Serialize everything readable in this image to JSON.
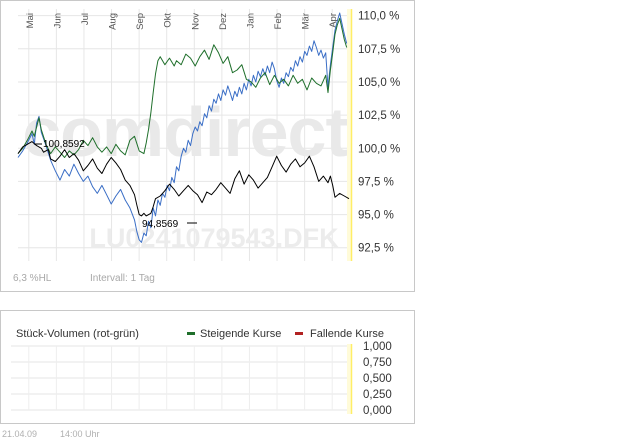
{
  "chart_data": {
    "type": "line",
    "months": [
      "Mai",
      "Jun",
      "Jul",
      "Aug",
      "Sep",
      "Okt",
      "Nov",
      "Dez",
      "Jan",
      "Feb",
      "Mär",
      "Apr"
    ],
    "y_ticks": [
      "110,0 %",
      "107,5 %",
      "105,0 %",
      "102,5 %",
      "100,0 %",
      "97,5 %",
      "95,0 %",
      "92,5 %"
    ],
    "ylim": [
      91.5,
      110.5
    ],
    "watermark": "comdirect",
    "security_id": "LU0241079543.DFK",
    "annotations": {
      "high": "100,8592",
      "low": "94,8569"
    },
    "series": [
      {
        "key": "fund",
        "color": "#000000",
        "points": [
          [
            0,
            99.6
          ],
          [
            2,
            100.1
          ],
          [
            4,
            100.3
          ],
          [
            6,
            100.5
          ],
          [
            8,
            100.2
          ],
          [
            10,
            100.0
          ],
          [
            11,
            99.7
          ],
          [
            13,
            99.9
          ],
          [
            14,
            99.2
          ],
          [
            16,
            99.0
          ],
          [
            18,
            99.4
          ],
          [
            20,
            99.9
          ],
          [
            22,
            99.3
          ],
          [
            24,
            99.6
          ],
          [
            26,
            99.1
          ],
          [
            28,
            98.3
          ],
          [
            30,
            98.7
          ],
          [
            32,
            99.2
          ],
          [
            34,
            98.5
          ],
          [
            36,
            98.1
          ],
          [
            38,
            98.8
          ],
          [
            40,
            99.3
          ],
          [
            42,
            98.9
          ],
          [
            44,
            98.4
          ],
          [
            46,
            97.6
          ],
          [
            48,
            97.2
          ],
          [
            50,
            96.5
          ],
          [
            51,
            95.7
          ],
          [
            52,
            95.0
          ],
          [
            53,
            94.9
          ],
          [
            54,
            95.1
          ],
          [
            55,
            94.9
          ],
          [
            57,
            95.1
          ],
          [
            58,
            95.6
          ],
          [
            59,
            96.2
          ],
          [
            61,
            96.4
          ],
          [
            63,
            96.8
          ],
          [
            65,
            97.3
          ],
          [
            67,
            96.9
          ],
          [
            69,
            96.4
          ],
          [
            71,
            96.8
          ],
          [
            73,
            97.2
          ],
          [
            75,
            96.8
          ],
          [
            77,
            96.5
          ],
          [
            79,
            95.9
          ],
          [
            81,
            96.7
          ],
          [
            83,
            96.5
          ],
          [
            85,
            96.9
          ],
          [
            87,
            97.4
          ],
          [
            89,
            97.0
          ],
          [
            91,
            96.6
          ],
          [
            93,
            97.7
          ],
          [
            95,
            98.3
          ],
          [
            97,
            97.3
          ],
          [
            99,
            98.0
          ],
          [
            101,
            97.6
          ],
          [
            103,
            97.0
          ],
          [
            105,
            97.4
          ],
          [
            107,
            97.8
          ],
          [
            109,
            98.6
          ],
          [
            111,
            99.4
          ],
          [
            113,
            98.7
          ],
          [
            115,
            98.2
          ],
          [
            117,
            98.8
          ],
          [
            119,
            99.2
          ],
          [
            121,
            98.6
          ],
          [
            123,
            98.9
          ],
          [
            125,
            99.4
          ],
          [
            127,
            98.6
          ],
          [
            129,
            97.5
          ],
          [
            131,
            97.9
          ],
          [
            133,
            97.4
          ],
          [
            134,
            97.9
          ],
          [
            135,
            97.2
          ],
          [
            136,
            96.3
          ],
          [
            138,
            96.6
          ],
          [
            140,
            96.4
          ],
          [
            142,
            96.2
          ]
        ]
      },
      {
        "key": "index_green",
        "color": "#1f6f2b",
        "points": [
          [
            0,
            99.6
          ],
          [
            2,
            100.0
          ],
          [
            4,
            100.6
          ],
          [
            6,
            101.3
          ],
          [
            7,
            100.9
          ],
          [
            8,
            101.6
          ],
          [
            9,
            102.3
          ],
          [
            10,
            101.4
          ],
          [
            12,
            100.3
          ],
          [
            14,
            99.6
          ],
          [
            16,
            100.1
          ],
          [
            18,
            99.7
          ],
          [
            20,
            99.3
          ],
          [
            22,
            99.8
          ],
          [
            24,
            99.5
          ],
          [
            26,
            99.9
          ],
          [
            28,
            100.6
          ],
          [
            30,
            100.2
          ],
          [
            32,
            100.8
          ],
          [
            34,
            100.1
          ],
          [
            36,
            99.7
          ],
          [
            38,
            100.1
          ],
          [
            40,
            99.6
          ],
          [
            42,
            100.3
          ],
          [
            44,
            99.8
          ],
          [
            46,
            99.5
          ],
          [
            48,
            100.6
          ],
          [
            50,
            100.9
          ],
          [
            52,
            99.8
          ],
          [
            54,
            99.6
          ],
          [
            55,
            100.4
          ],
          [
            56,
            101.4
          ],
          [
            57,
            102.7
          ],
          [
            58,
            104.2
          ],
          [
            59,
            105.6
          ],
          [
            60,
            106.6
          ],
          [
            61,
            106.9
          ],
          [
            63,
            106.3
          ],
          [
            65,
            106.8
          ],
          [
            67,
            106.2
          ],
          [
            68,
            106.6
          ],
          [
            70,
            106.3
          ],
          [
            72,
            107.1
          ],
          [
            74,
            106.8
          ],
          [
            76,
            106.2
          ],
          [
            78,
            106.9
          ],
          [
            80,
            107.4
          ],
          [
            82,
            106.7
          ],
          [
            84,
            107.8
          ],
          [
            86,
            107.2
          ],
          [
            88,
            106.4
          ],
          [
            90,
            106.9
          ],
          [
            92,
            105.7
          ],
          [
            94,
            105.9
          ],
          [
            96,
            106.3
          ],
          [
            98,
            105.2
          ],
          [
            100,
            105.0
          ],
          [
            102,
            104.6
          ],
          [
            104,
            105.3
          ],
          [
            106,
            105.7
          ],
          [
            108,
            104.8
          ],
          [
            110,
            105.5
          ],
          [
            112,
            104.9
          ],
          [
            114,
            105.2
          ],
          [
            116,
            104.7
          ],
          [
            118,
            105.5
          ],
          [
            120,
            104.9
          ],
          [
            122,
            105.2
          ],
          [
            124,
            104.4
          ],
          [
            126,
            105.3
          ],
          [
            128,
            104.9
          ],
          [
            130,
            104.7
          ],
          [
            132,
            105.5
          ],
          [
            133,
            104.2
          ],
          [
            134,
            105.9
          ],
          [
            135,
            107.2
          ],
          [
            136,
            108.6
          ],
          [
            137,
            109.3
          ],
          [
            138,
            109.8
          ],
          [
            139,
            109.0
          ],
          [
            140,
            108.2
          ],
          [
            141,
            107.6
          ]
        ]
      },
      {
        "key": "index_blue",
        "color": "#3a6ec6",
        "points": [
          [
            0,
            99.3
          ],
          [
            2,
            99.8
          ],
          [
            4,
            100.4
          ],
          [
            6,
            101.1
          ],
          [
            7,
            100.3
          ],
          [
            8,
            101.9
          ],
          [
            9,
            102.4
          ],
          [
            10,
            101.2
          ],
          [
            12,
            100.2
          ],
          [
            14,
            99.1
          ],
          [
            16,
            98.3
          ],
          [
            18,
            97.6
          ],
          [
            20,
            98.4
          ],
          [
            22,
            97.9
          ],
          [
            24,
            98.8
          ],
          [
            26,
            98.1
          ],
          [
            28,
            97.5
          ],
          [
            30,
            97.9
          ],
          [
            32,
            97.1
          ],
          [
            34,
            96.6
          ],
          [
            36,
            97.2
          ],
          [
            38,
            96.5
          ],
          [
            40,
            95.8
          ],
          [
            42,
            96.4
          ],
          [
            44,
            96.9
          ],
          [
            46,
            96.1
          ],
          [
            48,
            95.5
          ],
          [
            50,
            94.6
          ],
          [
            51,
            93.7
          ],
          [
            52,
            93.1
          ],
          [
            53,
            92.9
          ],
          [
            54,
            93.6
          ],
          [
            55,
            93.4
          ],
          [
            56,
            94.5
          ],
          [
            57,
            94.0
          ],
          [
            58,
            95.5
          ],
          [
            59,
            94.9
          ],
          [
            60,
            96.1
          ],
          [
            61,
            95.7
          ],
          [
            62,
            96.6
          ],
          [
            63,
            96.3
          ],
          [
            64,
            97.2
          ],
          [
            65,
            96.8
          ],
          [
            66,
            97.8
          ],
          [
            67,
            97.4
          ],
          [
            68,
            98.6
          ],
          [
            69,
            98.3
          ],
          [
            70,
            99.4
          ],
          [
            71,
            100.0
          ],
          [
            72,
            99.7
          ],
          [
            73,
            100.6
          ],
          [
            74,
            100.2
          ],
          [
            75,
            101.1
          ],
          [
            76,
            101.6
          ],
          [
            77,
            101.3
          ],
          [
            78,
            102.0
          ],
          [
            79,
            101.7
          ],
          [
            80,
            102.6
          ],
          [
            81,
            102.3
          ],
          [
            82,
            103.2
          ],
          [
            83,
            102.8
          ],
          [
            84,
            103.7
          ],
          [
            85,
            103.4
          ],
          [
            86,
            104.1
          ],
          [
            87,
            103.6
          ],
          [
            88,
            104.4
          ],
          [
            89,
            104.0
          ],
          [
            90,
            104.7
          ],
          [
            91,
            104.2
          ],
          [
            92,
            103.6
          ],
          [
            93,
            104.3
          ],
          [
            94,
            103.9
          ],
          [
            95,
            104.6
          ],
          [
            96,
            104.1
          ],
          [
            97,
            104.9
          ],
          [
            98,
            104.4
          ],
          [
            99,
            105.2
          ],
          [
            100,
            104.7
          ],
          [
            101,
            105.5
          ],
          [
            102,
            105.0
          ],
          [
            103,
            105.8
          ],
          [
            104,
            105.4
          ],
          [
            105,
            106.0
          ],
          [
            106,
            105.5
          ],
          [
            107,
            106.2
          ],
          [
            108,
            105.7
          ],
          [
            109,
            106.5
          ],
          [
            110,
            106.0
          ],
          [
            111,
            105.1
          ],
          [
            112,
            104.6
          ],
          [
            113,
            105.3
          ],
          [
            114,
            104.9
          ],
          [
            115,
            105.7
          ],
          [
            116,
            105.4
          ],
          [
            117,
            106.1
          ],
          [
            118,
            105.8
          ],
          [
            119,
            106.6
          ],
          [
            120,
            106.2
          ],
          [
            121,
            106.9
          ],
          [
            122,
            106.5
          ],
          [
            123,
            107.3
          ],
          [
            124,
            107.0
          ],
          [
            125,
            107.7
          ],
          [
            126,
            107.3
          ],
          [
            127,
            108.1
          ],
          [
            128,
            107.6
          ],
          [
            129,
            107.0
          ],
          [
            130,
            107.4
          ],
          [
            131,
            106.8
          ],
          [
            132,
            107.2
          ],
          [
            133,
            104.6
          ],
          [
            134,
            106.3
          ],
          [
            135,
            107.6
          ],
          [
            136,
            108.9
          ],
          [
            137,
            109.6
          ],
          [
            138,
            110.2
          ],
          [
            139,
            109.4
          ],
          [
            140,
            108.6
          ],
          [
            141,
            107.9
          ]
        ]
      }
    ],
    "footer_left": "6,3 %HL",
    "footer_interval": "Intervall: 1 Tag"
  },
  "volume": {
    "title": "Stück-Volumen (rot-grün)",
    "legend": [
      {
        "label": "Steigende Kurse",
        "color": "#1f6f2b"
      },
      {
        "label": "Fallende Kurse",
        "color": "#b22222"
      }
    ],
    "y_ticks": [
      "1,000",
      "0,750",
      "0,500",
      "0,250",
      "0,000"
    ],
    "values": []
  },
  "footer": {
    "date": "21.04.09",
    "time": "14:00 Uhr"
  }
}
